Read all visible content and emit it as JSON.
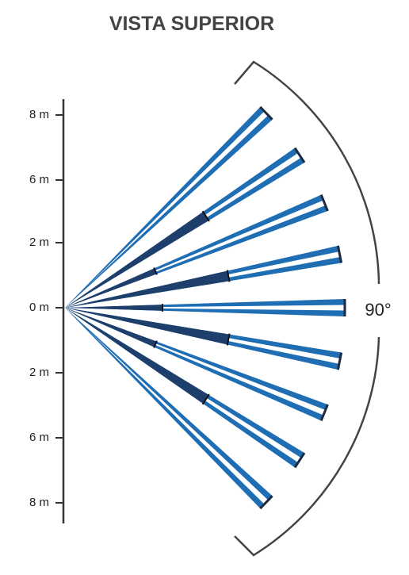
{
  "header": {
    "title": "VISTA SUPERIOR"
  },
  "axis": {
    "labels": [
      "8 m",
      "6 m",
      "2 m",
      "0 m",
      "2 m",
      "6 m",
      "8 m"
    ]
  },
  "angle_label": "90°"
}
